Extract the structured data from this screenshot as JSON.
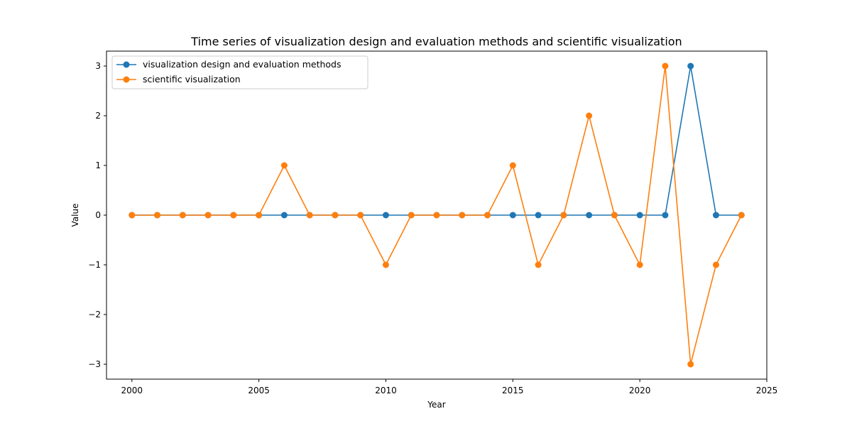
{
  "chart_data": {
    "type": "line",
    "title": "Time series of visualization design and evaluation methods and scientific visualization",
    "xlabel": "Year",
    "ylabel": "Value",
    "xlim": [
      1999,
      2025
    ],
    "ylim": [
      -3.3,
      3.3
    ],
    "xticks": [
      2000,
      2005,
      2010,
      2015,
      2020,
      2025
    ],
    "yticks": [
      -3,
      -2,
      -1,
      0,
      1,
      2,
      3
    ],
    "grid": false,
    "legend_position": "top-left",
    "x": [
      2000,
      2001,
      2002,
      2003,
      2004,
      2005,
      2006,
      2007,
      2008,
      2009,
      2010,
      2011,
      2012,
      2013,
      2014,
      2015,
      2016,
      2017,
      2018,
      2019,
      2020,
      2021,
      2022,
      2023,
      2024
    ],
    "series": [
      {
        "name": "visualization design and evaluation methods",
        "color": "#1f77b4",
        "values": [
          0,
          0,
          0,
          0,
          0,
          0,
          0,
          0,
          0,
          0,
          0,
          0,
          0,
          0,
          0,
          0,
          0,
          0,
          0,
          0,
          0,
          0,
          3,
          0,
          0
        ]
      },
      {
        "name": "scientific visualization",
        "color": "#ff7f0e",
        "values": [
          0,
          0,
          0,
          0,
          0,
          0,
          1,
          0,
          0,
          0,
          -1,
          0,
          0,
          0,
          0,
          1,
          -1,
          0,
          2,
          0,
          -1,
          3,
          -3,
          -1,
          0
        ]
      }
    ]
  }
}
